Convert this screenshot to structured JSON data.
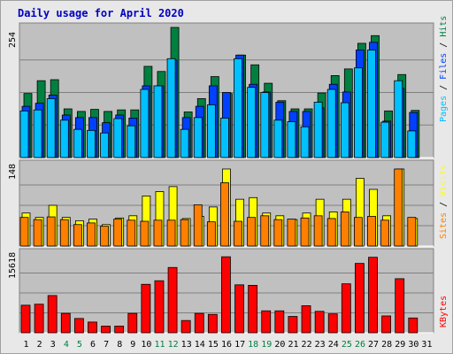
{
  "title": "Daily usage for April 2020",
  "colors": {
    "background": "#c0c0c0",
    "title": "#0000c0",
    "hits": "#008040",
    "files": "#0040ff",
    "pages": "#00c0ff",
    "visits": "#ffff00",
    "sites": "#ff8000",
    "kbytes": "#ff0000",
    "weekend_label": "#008040",
    "weekday_label": "#000000"
  },
  "chart_data": [
    {
      "type": "bar",
      "ylabel": "Pages / Files / Hits",
      "ymax_label": "254",
      "ylim": [
        0,
        254
      ],
      "series": [
        {
          "name": "Hits",
          "values": [
            125,
            150,
            152,
            95,
            90,
            94,
            90,
            93,
            93,
            178,
            168,
            254,
            89,
            115,
            158,
            125,
            200,
            181,
            145,
            111,
            95,
            95,
            126,
            160,
            173,
            223,
            238,
            91,
            162,
            92,
            null
          ]
        },
        {
          "name": "Files",
          "values": [
            100,
            106,
            122,
            83,
            78,
            78,
            68,
            83,
            77,
            140,
            140,
            190,
            78,
            100,
            140,
            127,
            200,
            143,
            128,
            108,
            90,
            90,
            97,
            143,
            128,
            210,
            225,
            71,
            135,
            88,
            null
          ]
        },
        {
          "name": "Pages",
          "values": [
            91,
            93,
            115,
            73,
            55,
            53,
            48,
            76,
            62,
            133,
            140,
            193,
            55,
            78,
            103,
            77,
            193,
            137,
            127,
            73,
            70,
            60,
            108,
            133,
            107,
            175,
            210,
            69,
            150,
            52,
            null
          ]
        }
      ]
    },
    {
      "type": "bar",
      "ylabel": "Sites / Visits",
      "ymax_label": "148",
      "ylim": [
        0,
        148
      ],
      "series": [
        {
          "name": "Visits",
          "values": [
            60,
            52,
            74,
            52,
            46,
            49,
            39,
            51,
            55,
            91,
            99,
            108,
            50,
            54,
            71,
            140,
            85,
            88,
            60,
            55,
            48,
            60,
            85,
            62,
            85,
            123,
            103,
            55,
            140,
            50,
            null
          ]
        },
        {
          "name": "Sites",
          "values": [
            52,
            48,
            53,
            48,
            39,
            42,
            36,
            49,
            47,
            45,
            47,
            47,
            48,
            75,
            44,
            115,
            45,
            52,
            55,
            48,
            49,
            51,
            55,
            50,
            62,
            52,
            54,
            47,
            140,
            52,
            null
          ]
        }
      ]
    },
    {
      "type": "bar",
      "ylabel": "KBytes",
      "ymax_label": "15618",
      "ylim": [
        0,
        15618
      ],
      "series": [
        {
          "name": "KBytes",
          "values": [
            5400,
            5600,
            7300,
            3800,
            2800,
            2100,
            1300,
            1300,
            3800,
            9500,
            10200,
            12800,
            2400,
            3800,
            3600,
            14900,
            9400,
            9300,
            4300,
            4300,
            3200,
            5300,
            4200,
            3700,
            9600,
            13600,
            14800,
            3300,
            10600,
            2900,
            null
          ]
        }
      ]
    }
  ],
  "days": [
    "1",
    "2",
    "3",
    "4",
    "5",
    "6",
    "7",
    "8",
    "9",
    "10",
    "11",
    "12",
    "13",
    "14",
    "15",
    "16",
    "17",
    "18",
    "19",
    "20",
    "21",
    "22",
    "23",
    "24",
    "25",
    "26",
    "27",
    "28",
    "29",
    "30",
    "31"
  ],
  "weekend_days": [
    "4",
    "5",
    "11",
    "12",
    "18",
    "19",
    "25",
    "26"
  ]
}
